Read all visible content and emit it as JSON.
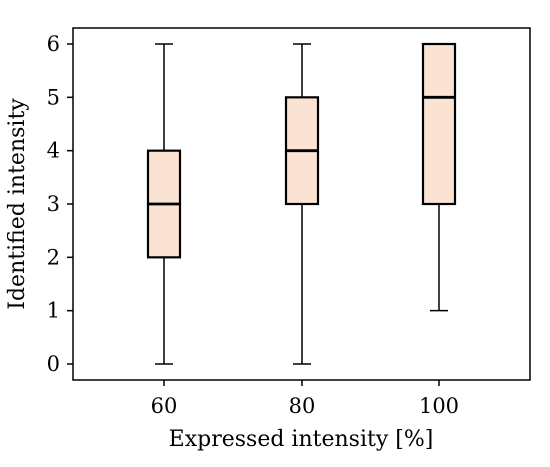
{
  "chart_data": {
    "type": "box",
    "title": "",
    "xlabel": "Expressed intensity [%]",
    "ylabel": "Identified intensity",
    "categories": [
      "60",
      "80",
      "100"
    ],
    "boxes": [
      {
        "category": "60",
        "whisker_low": 0,
        "q1": 2,
        "median": 3,
        "q3": 4,
        "whisker_high": 6
      },
      {
        "category": "80",
        "whisker_low": 0,
        "q1": 3,
        "median": 4,
        "q3": 5,
        "whisker_high": 6
      },
      {
        "category": "100",
        "whisker_low": 1,
        "q1": 3,
        "median": 5,
        "q3": 6,
        "whisker_high": 6
      }
    ],
    "yticks": [
      "0",
      "1",
      "2",
      "3",
      "4",
      "5",
      "6"
    ],
    "ylim": [
      -0.3,
      6.3
    ],
    "grid": false,
    "legend": "none",
    "colors": {
      "box_fill": "#fbe3d4",
      "box_edge": "#000000",
      "median": "#000000",
      "whisker": "#000000"
    }
  }
}
